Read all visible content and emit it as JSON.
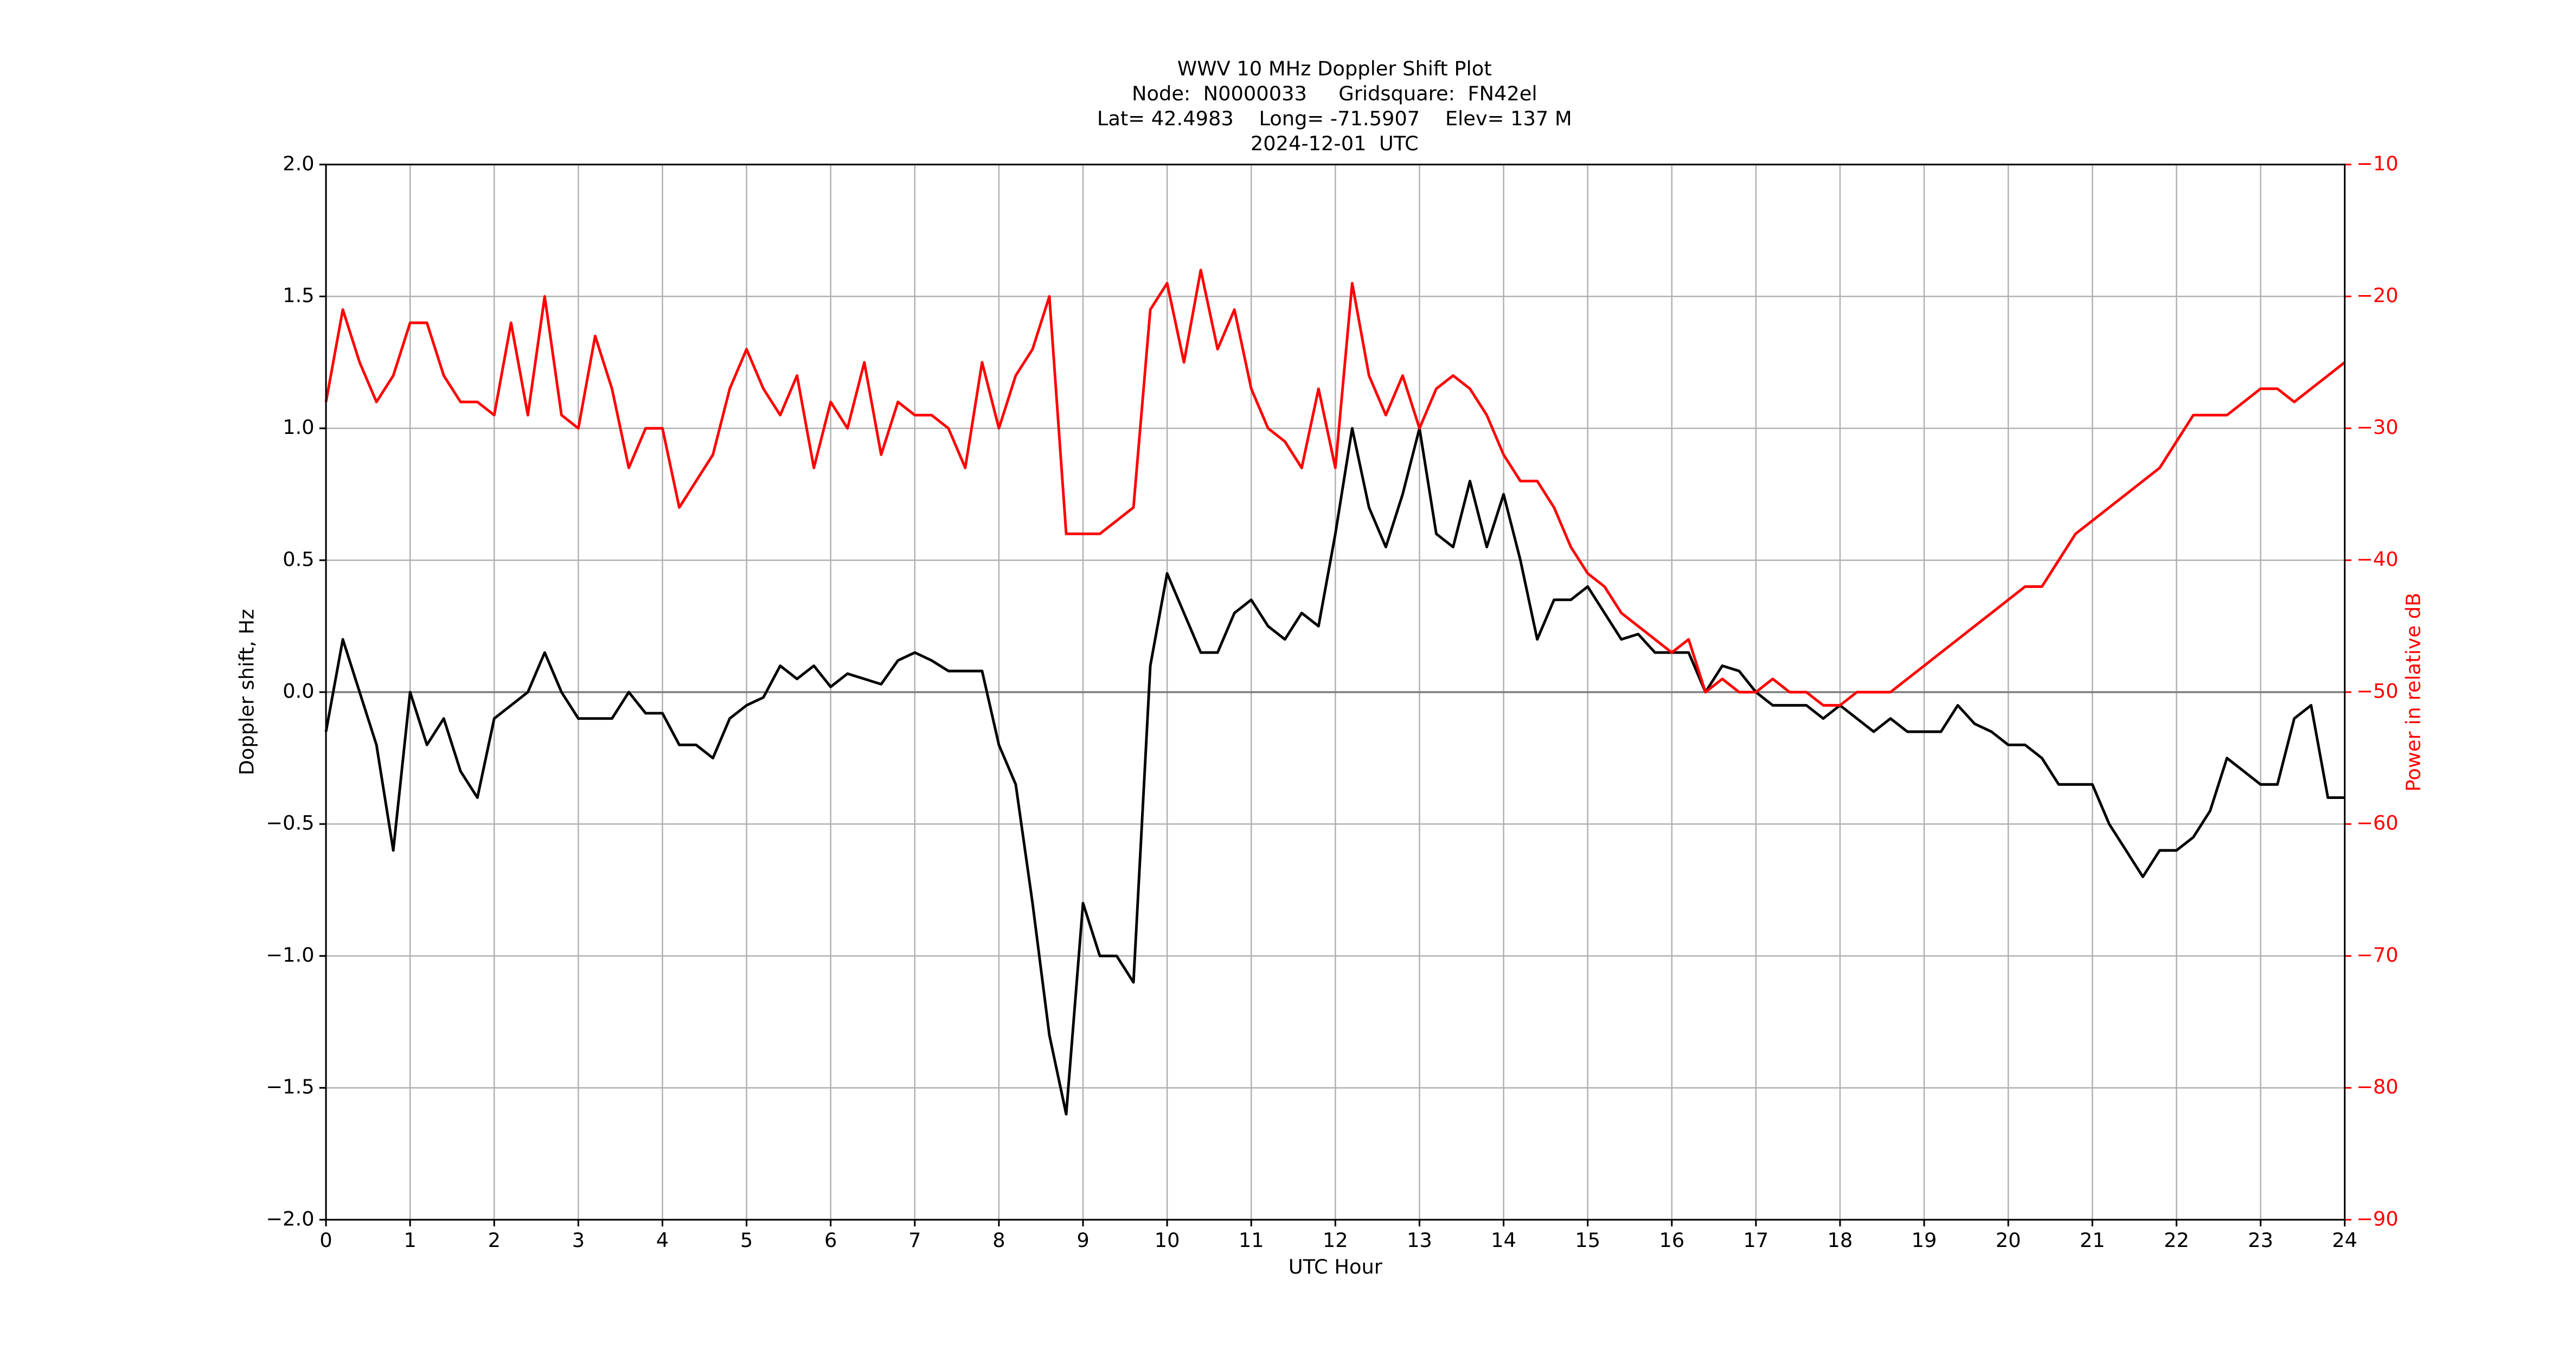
{
  "chart_data": {
    "type": "line",
    "title": [
      "WWV 10 MHz Doppler Shift Plot",
      "Node:  N0000033     Gridsquare:  FN42el",
      "Lat= 42.4983    Long= -71.5907    Elev= 137 M",
      "2024-12-01  UTC"
    ],
    "xlabel": "UTC Hour",
    "ylabel": "Doppler shift, Hz",
    "y2label": "Power in relative dB",
    "grid": true,
    "xlim": [
      0,
      24
    ],
    "xticks": [
      0,
      1,
      2,
      3,
      4,
      5,
      6,
      7,
      8,
      9,
      10,
      11,
      12,
      13,
      14,
      15,
      16,
      17,
      18,
      19,
      20,
      21,
      22,
      23,
      24
    ],
    "ylim": [
      -2,
      2
    ],
    "yticks": [
      {
        "value": -2,
        "label": "−2.0"
      },
      {
        "value": -1.5,
        "label": "−1.5"
      },
      {
        "value": -1,
        "label": "−1.0"
      },
      {
        "value": -0.5,
        "label": "−0.5"
      },
      {
        "value": 0,
        "label": "0.0"
      },
      {
        "value": 0.5,
        "label": "0.5"
      },
      {
        "value": 1,
        "label": "1.0"
      },
      {
        "value": 1.5,
        "label": "1.5"
      },
      {
        "value": 2,
        "label": "2.0"
      }
    ],
    "y2lim": [
      -90,
      -10
    ],
    "y2ticks": [
      {
        "value": -90,
        "label": "−90"
      },
      {
        "value": -80,
        "label": "−80"
      },
      {
        "value": -70,
        "label": "−70"
      },
      {
        "value": -60,
        "label": "−60"
      },
      {
        "value": -50,
        "label": "−50"
      },
      {
        "value": -40,
        "label": "−40"
      },
      {
        "value": -30,
        "label": "−30"
      },
      {
        "value": -20,
        "label": "−20"
      },
      {
        "value": -10,
        "label": "−10"
      }
    ],
    "x": [
      0,
      0.2,
      0.4,
      0.6,
      0.8,
      1,
      1.2,
      1.4,
      1.6,
      1.8,
      2,
      2.2,
      2.4,
      2.6,
      2.8,
      3,
      3.2,
      3.4,
      3.6,
      3.8,
      4,
      4.2,
      4.4,
      4.6,
      4.8,
      5,
      5.2,
      5.4,
      5.6,
      5.8,
      6,
      6.2,
      6.4,
      6.6,
      6.8,
      7,
      7.2,
      7.4,
      7.6,
      7.8,
      8,
      8.2,
      8.4,
      8.6,
      8.8,
      9,
      9.2,
      9.4,
      9.6,
      9.8,
      10,
      10.2,
      10.4,
      10.6,
      10.8,
      11,
      11.2,
      11.4,
      11.6,
      11.8,
      12,
      12.2,
      12.4,
      12.6,
      12.8,
      13,
      13.2,
      13.4,
      13.6,
      13.8,
      14,
      14.2,
      14.4,
      14.6,
      14.8,
      15,
      15.2,
      15.4,
      15.6,
      15.8,
      16,
      16.2,
      16.4,
      16.6,
      16.8,
      17,
      17.2,
      17.4,
      17.6,
      17.8,
      18,
      18.2,
      18.4,
      18.6,
      18.8,
      19,
      19.2,
      19.4,
      19.6,
      19.8,
      20,
      20.2,
      20.4,
      20.6,
      20.8,
      21,
      21.2,
      21.4,
      21.6,
      21.8,
      22,
      22.2,
      22.4,
      22.6,
      22.8,
      23,
      23.2,
      23.4,
      23.6,
      23.8,
      24
    ],
    "series": [
      {
        "name": "Doppler shift",
        "color": "#000000",
        "values": [
          -0.15,
          0.2,
          0.0,
          -0.2,
          -0.6,
          0.0,
          -0.2,
          -0.1,
          -0.3,
          -0.4,
          -0.1,
          -0.05,
          0.0,
          0.15,
          0.0,
          -0.1,
          -0.1,
          -0.1,
          0.0,
          -0.08,
          -0.08,
          -0.2,
          -0.2,
          -0.25,
          -0.1,
          -0.05,
          -0.02,
          0.1,
          0.05,
          0.1,
          0.02,
          0.07,
          0.05,
          0.03,
          0.12,
          0.15,
          0.12,
          0.08,
          0.08,
          0.08,
          -0.2,
          -0.35,
          -0.8,
          -1.3,
          -1.6,
          -0.8,
          -1.0,
          -1.0,
          -1.1,
          0.1,
          0.45,
          0.3,
          0.15,
          0.15,
          0.3,
          0.35,
          0.25,
          0.2,
          0.3,
          0.25,
          0.6,
          1.0,
          0.7,
          0.55,
          0.75,
          1.0,
          0.6,
          0.55,
          0.8,
          0.55,
          0.75,
          0.5,
          0.2,
          0.35,
          0.35,
          0.4,
          0.3,
          0.2,
          0.22,
          0.15,
          0.15,
          0.15,
          0.0,
          0.1,
          0.08,
          0.0,
          -0.05,
          -0.05,
          -0.05,
          -0.1,
          -0.05,
          -0.1,
          -0.15,
          -0.1,
          -0.15,
          -0.15,
          -0.15,
          -0.05,
          -0.12,
          -0.15,
          -0.2,
          -0.2,
          -0.25,
          -0.35,
          -0.35,
          -0.35,
          -0.5,
          -0.6,
          -0.7,
          -0.6,
          -0.6,
          -0.55,
          -0.45,
          -0.25,
          -0.3,
          -0.35,
          -0.35,
          -0.1,
          -0.05,
          -0.4,
          -0.4
        ]
      },
      {
        "name": "Power",
        "color": "#ff0000",
        "axis": "y2",
        "values": [
          -28,
          -21,
          -25,
          -28,
          -26,
          -22,
          -22,
          -26,
          -28,
          -28,
          -29,
          -22,
          -29,
          -20,
          -29,
          -30,
          -23,
          -27,
          -33,
          -30,
          -30,
          -36,
          -34,
          -32,
          -27,
          -24,
          -27,
          -29,
          -26,
          -33,
          -28,
          -30,
          -25,
          -32,
          -28,
          -29,
          -29,
          -30,
          -33,
          -25,
          -30,
          -26,
          -24,
          -20,
          -38,
          -38,
          -38,
          -37,
          -36,
          -21,
          -19,
          -25,
          -18,
          -24,
          -21,
          -27,
          -30,
          -31,
          -33,
          -27,
          -33,
          -19,
          -26,
          -29,
          -26,
          -30,
          -27,
          -26,
          -27,
          -29,
          -32,
          -34,
          -34,
          -36,
          -39,
          -41,
          -42,
          -44,
          -45,
          -46,
          -47,
          -46,
          -50,
          -49,
          -50,
          -50,
          -49,
          -50,
          -50,
          -51,
          -51,
          -50,
          -50,
          -50,
          -49,
          -48,
          -47,
          -46,
          -45,
          -44,
          -43,
          -42,
          -42,
          -40,
          -38,
          -37,
          -36,
          -35,
          -34,
          -33,
          -31,
          -29,
          -29,
          -29,
          -28,
          -27,
          -27,
          -28,
          -27,
          -26,
          -25
        ]
      }
    ]
  }
}
